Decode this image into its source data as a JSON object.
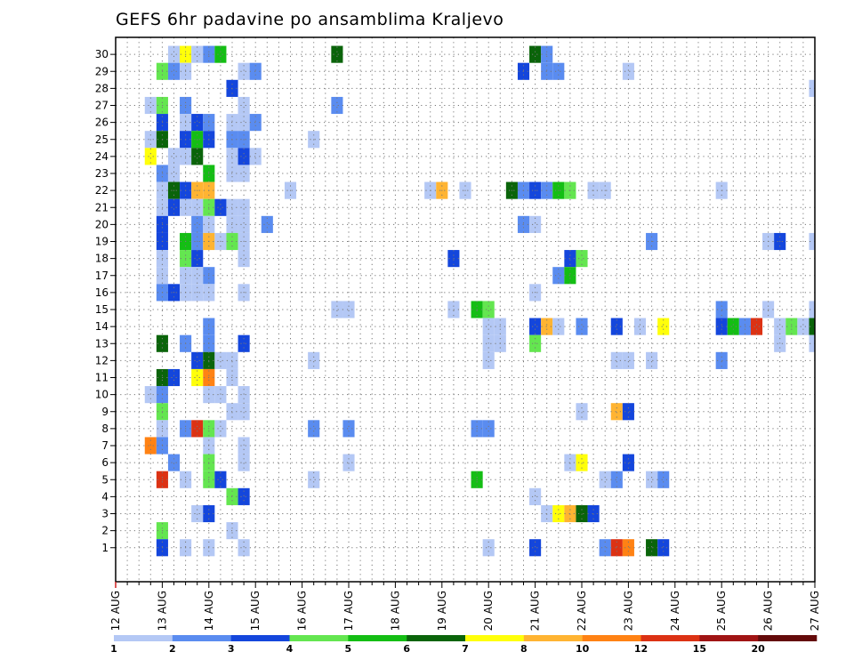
{
  "chart_data": {
    "type": "heatmap",
    "title": "GEFS 6hr padavine po ansamblima Kraljevo",
    "xlabel": "",
    "ylabel": "",
    "x_tick_labels": [
      "12 AUG",
      "13 AUG",
      "14 AUG",
      "15 AUG",
      "16 AUG",
      "17 AUG",
      "18 AUG",
      "19 AUG",
      "20 AUG",
      "21 AUG",
      "22 AUG",
      "23 AUG",
      "24 AUG",
      "25 AUG",
      "26 AUG",
      "27 AUG"
    ],
    "y_tick_labels": [
      "1",
      "2",
      "3",
      "4",
      "5",
      "6",
      "7",
      "8",
      "9",
      "10",
      "11",
      "12",
      "13",
      "14",
      "15",
      "16",
      "17",
      "18",
      "19",
      "20",
      "21",
      "22",
      "23",
      "24",
      "25",
      "26",
      "27",
      "28",
      "29",
      "30"
    ],
    "grid": true,
    "legend_position": "bottom",
    "color_scale": {
      "labels": [
        "1",
        "2",
        "3",
        "4",
        "5",
        "6",
        "7",
        "8",
        "10",
        "12",
        "15",
        "20"
      ],
      "colors": [
        "#b4c8f5",
        "#5a8cf0",
        "#1446dc",
        "#64e650",
        "#14be14",
        "#0a640a",
        "#ffff0a",
        "#ffb432",
        "#ff8214",
        "#dc3214",
        "#a01414",
        "#640a0a"
      ]
    },
    "cells": [
      {
        "d": "13 06",
        "e": 30,
        "c": 0
      },
      {
        "d": "13 12",
        "e": 30,
        "c": 6
      },
      {
        "d": "13 18",
        "e": 30,
        "c": 0
      },
      {
        "d": "14 00",
        "e": 30,
        "c": 1
      },
      {
        "d": "14 06",
        "e": 30,
        "c": 4
      },
      {
        "d": "16 18",
        "e": 30,
        "c": 5
      },
      {
        "d": "21 00",
        "e": 30,
        "c": 5
      },
      {
        "d": "21 06",
        "e": 30,
        "c": 1
      },
      {
        "d": "13 00",
        "e": 29,
        "c": 3
      },
      {
        "d": "13 06",
        "e": 29,
        "c": 1
      },
      {
        "d": "13 12",
        "e": 29,
        "c": 0
      },
      {
        "d": "14 18",
        "e": 29,
        "c": 0
      },
      {
        "d": "15 00",
        "e": 29,
        "c": 1
      },
      {
        "d": "20 18",
        "e": 29,
        "c": 2
      },
      {
        "d": "21 06",
        "e": 29,
        "c": 1
      },
      {
        "d": "21 12",
        "e": 29,
        "c": 1
      },
      {
        "d": "23 00",
        "e": 29,
        "c": 0
      },
      {
        "d": "14 12",
        "e": 28,
        "c": 2
      },
      {
        "d": "27 00",
        "e": 28,
        "c": 0
      },
      {
        "d": "12 18",
        "e": 27,
        "c": 0
      },
      {
        "d": "13 00",
        "e": 27,
        "c": 3
      },
      {
        "d": "13 12",
        "e": 27,
        "c": 1
      },
      {
        "d": "14 18",
        "e": 27,
        "c": 0
      },
      {
        "d": "16 18",
        "e": 27,
        "c": 1
      },
      {
        "d": "13 00",
        "e": 26,
        "c": 2
      },
      {
        "d": "13 12",
        "e": 26,
        "c": 0
      },
      {
        "d": "13 18",
        "e": 26,
        "c": 2
      },
      {
        "d": "14 00",
        "e": 26,
        "c": 1
      },
      {
        "d": "14 12",
        "e": 26,
        "c": 0
      },
      {
        "d": "14 18",
        "e": 26,
        "c": 0
      },
      {
        "d": "15 00",
        "e": 26,
        "c": 1
      },
      {
        "d": "12 18",
        "e": 25,
        "c": 0
      },
      {
        "d": "13 00",
        "e": 25,
        "c": 5
      },
      {
        "d": "13 12",
        "e": 25,
        "c": 2
      },
      {
        "d": "13 18",
        "e": 25,
        "c": 4
      },
      {
        "d": "14 00",
        "e": 25,
        "c": 2
      },
      {
        "d": "14 12",
        "e": 25,
        "c": 1
      },
      {
        "d": "14 18",
        "e": 25,
        "c": 1
      },
      {
        "d": "16 06",
        "e": 25,
        "c": 0
      },
      {
        "d": "12 18",
        "e": 24,
        "c": 6
      },
      {
        "d": "13 06",
        "e": 24,
        "c": 0
      },
      {
        "d": "13 12",
        "e": 24,
        "c": 0
      },
      {
        "d": "13 18",
        "e": 24,
        "c": 5
      },
      {
        "d": "14 12",
        "e": 24,
        "c": 0
      },
      {
        "d": "14 18",
        "e": 24,
        "c": 2
      },
      {
        "d": "15 00",
        "e": 24,
        "c": 0
      },
      {
        "d": "13 00",
        "e": 23,
        "c": 1
      },
      {
        "d": "13 06",
        "e": 23,
        "c": 0
      },
      {
        "d": "14 00",
        "e": 23,
        "c": 4
      },
      {
        "d": "14 12",
        "e": 23,
        "c": 0
      },
      {
        "d": "14 18",
        "e": 23,
        "c": 0
      },
      {
        "d": "13 00",
        "e": 22,
        "c": 0
      },
      {
        "d": "13 06",
        "e": 22,
        "c": 5
      },
      {
        "d": "13 12",
        "e": 22,
        "c": 2
      },
      {
        "d": "13 18",
        "e": 22,
        "c": 7
      },
      {
        "d": "14 00",
        "e": 22,
        "c": 7
      },
      {
        "d": "15 18",
        "e": 22,
        "c": 0
      },
      {
        "d": "18 18",
        "e": 22,
        "c": 0
      },
      {
        "d": "19 00",
        "e": 22,
        "c": 7
      },
      {
        "d": "19 12",
        "e": 22,
        "c": 0
      },
      {
        "d": "20 12",
        "e": 22,
        "c": 5
      },
      {
        "d": "20 18",
        "e": 22,
        "c": 1
      },
      {
        "d": "21 00",
        "e": 22,
        "c": 2
      },
      {
        "d": "21 06",
        "e": 22,
        "c": 1
      },
      {
        "d": "21 12",
        "e": 22,
        "c": 4
      },
      {
        "d": "21 18",
        "e": 22,
        "c": 3
      },
      {
        "d": "22 06",
        "e": 22,
        "c": 0
      },
      {
        "d": "22 12",
        "e": 22,
        "c": 0
      },
      {
        "d": "25 00",
        "e": 22,
        "c": 0
      },
      {
        "d": "13 00",
        "e": 21,
        "c": 0
      },
      {
        "d": "13 06",
        "e": 21,
        "c": 2
      },
      {
        "d": "13 12",
        "e": 21,
        "c": 0
      },
      {
        "d": "13 18",
        "e": 21,
        "c": 0
      },
      {
        "d": "14 00",
        "e": 21,
        "c": 3
      },
      {
        "d": "14 06",
        "e": 21,
        "c": 2
      },
      {
        "d": "14 12",
        "e": 21,
        "c": 0
      },
      {
        "d": "14 18",
        "e": 21,
        "c": 0
      },
      {
        "d": "13 00",
        "e": 20,
        "c": 2
      },
      {
        "d": "13 18",
        "e": 20,
        "c": 1
      },
      {
        "d": "14 00",
        "e": 20,
        "c": 0
      },
      {
        "d": "14 12",
        "e": 20,
        "c": 0
      },
      {
        "d": "14 18",
        "e": 20,
        "c": 0
      },
      {
        "d": "15 06",
        "e": 20,
        "c": 1
      },
      {
        "d": "20 18",
        "e": 20,
        "c": 1
      },
      {
        "d": "21 00",
        "e": 20,
        "c": 0
      },
      {
        "d": "13 00",
        "e": 19,
        "c": 2
      },
      {
        "d": "13 12",
        "e": 19,
        "c": 4
      },
      {
        "d": "13 18",
        "e": 19,
        "c": 1
      },
      {
        "d": "14 00",
        "e": 19,
        "c": 7
      },
      {
        "d": "14 06",
        "e": 19,
        "c": 0
      },
      {
        "d": "14 12",
        "e": 19,
        "c": 3
      },
      {
        "d": "14 18",
        "e": 19,
        "c": 0
      },
      {
        "d": "23 12",
        "e": 19,
        "c": 1
      },
      {
        "d": "26 00",
        "e": 19,
        "c": 0
      },
      {
        "d": "26 06",
        "e": 19,
        "c": 2
      },
      {
        "d": "27 00",
        "e": 19,
        "c": 0
      },
      {
        "d": "13 00",
        "e": 18,
        "c": 0
      },
      {
        "d": "13 12",
        "e": 18,
        "c": 3
      },
      {
        "d": "13 18",
        "e": 18,
        "c": 2
      },
      {
        "d": "14 18",
        "e": 18,
        "c": 0
      },
      {
        "d": "19 06",
        "e": 18,
        "c": 2
      },
      {
        "d": "21 18",
        "e": 18,
        "c": 2
      },
      {
        "d": "22 00",
        "e": 18,
        "c": 3
      },
      {
        "d": "13 00",
        "e": 17,
        "c": 0
      },
      {
        "d": "13 12",
        "e": 17,
        "c": 0
      },
      {
        "d": "13 18",
        "e": 17,
        "c": 0
      },
      {
        "d": "14 00",
        "e": 17,
        "c": 1
      },
      {
        "d": "21 12",
        "e": 17,
        "c": 1
      },
      {
        "d": "21 18",
        "e": 17,
        "c": 4
      },
      {
        "d": "13 00",
        "e": 16,
        "c": 1
      },
      {
        "d": "13 06",
        "e": 16,
        "c": 2
      },
      {
        "d": "13 12",
        "e": 16,
        "c": 0
      },
      {
        "d": "13 18",
        "e": 16,
        "c": 0
      },
      {
        "d": "14 00",
        "e": 16,
        "c": 0
      },
      {
        "d": "14 18",
        "e": 16,
        "c": 0
      },
      {
        "d": "21 00",
        "e": 16,
        "c": 0
      },
      {
        "d": "16 18",
        "e": 15,
        "c": 0
      },
      {
        "d": "17 00",
        "e": 15,
        "c": 0
      },
      {
        "d": "19 06",
        "e": 15,
        "c": 0
      },
      {
        "d": "19 18",
        "e": 15,
        "c": 4
      },
      {
        "d": "20 00",
        "e": 15,
        "c": 3
      },
      {
        "d": "25 00",
        "e": 15,
        "c": 1
      },
      {
        "d": "26 00",
        "e": 15,
        "c": 0
      },
      {
        "d": "27 00",
        "e": 15,
        "c": 0
      },
      {
        "d": "14 00",
        "e": 14,
        "c": 1
      },
      {
        "d": "20 00",
        "e": 14,
        "c": 0
      },
      {
        "d": "20 06",
        "e": 14,
        "c": 0
      },
      {
        "d": "21 00",
        "e": 14,
        "c": 2
      },
      {
        "d": "21 06",
        "e": 14,
        "c": 7
      },
      {
        "d": "21 12",
        "e": 14,
        "c": 0
      },
      {
        "d": "22 00",
        "e": 14,
        "c": 1
      },
      {
        "d": "22 18",
        "e": 14,
        "c": 2
      },
      {
        "d": "23 06",
        "e": 14,
        "c": 0
      },
      {
        "d": "23 18",
        "e": 14,
        "c": 6
      },
      {
        "d": "25 00",
        "e": 14,
        "c": 2
      },
      {
        "d": "25 06",
        "e": 14,
        "c": 4
      },
      {
        "d": "25 12",
        "e": 14,
        "c": 1
      },
      {
        "d": "25 18",
        "e": 14,
        "c": 9
      },
      {
        "d": "26 06",
        "e": 14,
        "c": 0
      },
      {
        "d": "26 12",
        "e": 14,
        "c": 3
      },
      {
        "d": "26 18",
        "e": 14,
        "c": 0
      },
      {
        "d": "27 00",
        "e": 14,
        "c": 5
      },
      {
        "d": "13 00",
        "e": 13,
        "c": 5
      },
      {
        "d": "13 12",
        "e": 13,
        "c": 1
      },
      {
        "d": "14 00",
        "e": 13,
        "c": 1
      },
      {
        "d": "14 18",
        "e": 13,
        "c": 2
      },
      {
        "d": "20 00",
        "e": 13,
        "c": 0
      },
      {
        "d": "20 06",
        "e": 13,
        "c": 0
      },
      {
        "d": "21 00",
        "e": 13,
        "c": 3
      },
      {
        "d": "26 06",
        "e": 13,
        "c": 0
      },
      {
        "d": "27 00",
        "e": 13,
        "c": 0
      },
      {
        "d": "13 18",
        "e": 12,
        "c": 2
      },
      {
        "d": "14 00",
        "e": 12,
        "c": 5
      },
      {
        "d": "14 06",
        "e": 12,
        "c": 0
      },
      {
        "d": "14 12",
        "e": 12,
        "c": 0
      },
      {
        "d": "16 06",
        "e": 12,
        "c": 0
      },
      {
        "d": "20 00",
        "e": 12,
        "c": 0
      },
      {
        "d": "22 18",
        "e": 12,
        "c": 0
      },
      {
        "d": "23 00",
        "e": 12,
        "c": 0
      },
      {
        "d": "23 12",
        "e": 12,
        "c": 0
      },
      {
        "d": "25 00",
        "e": 12,
        "c": 1
      },
      {
        "d": "13 00",
        "e": 11,
        "c": 5
      },
      {
        "d": "13 06",
        "e": 11,
        "c": 2
      },
      {
        "d": "13 18",
        "e": 11,
        "c": 6
      },
      {
        "d": "14 00",
        "e": 11,
        "c": 8
      },
      {
        "d": "14 12",
        "e": 11,
        "c": 0
      },
      {
        "d": "12 18",
        "e": 10,
        "c": 0
      },
      {
        "d": "13 00",
        "e": 10,
        "c": 1
      },
      {
        "d": "14 00",
        "e": 10,
        "c": 0
      },
      {
        "d": "14 06",
        "e": 10,
        "c": 0
      },
      {
        "d": "14 18",
        "e": 10,
        "c": 0
      },
      {
        "d": "13 00",
        "e": 9,
        "c": 3
      },
      {
        "d": "14 12",
        "e": 9,
        "c": 0
      },
      {
        "d": "14 18",
        "e": 9,
        "c": 0
      },
      {
        "d": "22 00",
        "e": 9,
        "c": 0
      },
      {
        "d": "22 18",
        "e": 9,
        "c": 7
      },
      {
        "d": "23 00",
        "e": 9,
        "c": 2
      },
      {
        "d": "13 00",
        "e": 8,
        "c": 0
      },
      {
        "d": "13 12",
        "e": 8,
        "c": 1
      },
      {
        "d": "13 18",
        "e": 8,
        "c": 9
      },
      {
        "d": "14 00",
        "e": 8,
        "c": 3
      },
      {
        "d": "14 06",
        "e": 8,
        "c": 0
      },
      {
        "d": "16 06",
        "e": 8,
        "c": 1
      },
      {
        "d": "17 00",
        "e": 8,
        "c": 1
      },
      {
        "d": "19 18",
        "e": 8,
        "c": 1
      },
      {
        "d": "20 00",
        "e": 8,
        "c": 1
      },
      {
        "d": "12 18",
        "e": 7,
        "c": 8
      },
      {
        "d": "13 00",
        "e": 7,
        "c": 1
      },
      {
        "d": "14 00",
        "e": 7,
        "c": 0
      },
      {
        "d": "14 18",
        "e": 7,
        "c": 0
      },
      {
        "d": "13 06",
        "e": 6,
        "c": 1
      },
      {
        "d": "14 00",
        "e": 6,
        "c": 3
      },
      {
        "d": "14 18",
        "e": 6,
        "c": 0
      },
      {
        "d": "17 00",
        "e": 6,
        "c": 0
      },
      {
        "d": "21 18",
        "e": 6,
        "c": 0
      },
      {
        "d": "22 00",
        "e": 6,
        "c": 6
      },
      {
        "d": "23 00",
        "e": 6,
        "c": 2
      },
      {
        "d": "13 00",
        "e": 5,
        "c": 9
      },
      {
        "d": "13 12",
        "e": 5,
        "c": 0
      },
      {
        "d": "14 00",
        "e": 5,
        "c": 3
      },
      {
        "d": "14 06",
        "e": 5,
        "c": 2
      },
      {
        "d": "16 06",
        "e": 5,
        "c": 0
      },
      {
        "d": "19 18",
        "e": 5,
        "c": 4
      },
      {
        "d": "22 12",
        "e": 5,
        "c": 0
      },
      {
        "d": "22 18",
        "e": 5,
        "c": 1
      },
      {
        "d": "23 18",
        "e": 5,
        "c": 1
      },
      {
        "d": "23 12",
        "e": 5,
        "c": 0
      },
      {
        "d": "14 12",
        "e": 4,
        "c": 3
      },
      {
        "d": "14 18",
        "e": 4,
        "c": 2
      },
      {
        "d": "21 00",
        "e": 4,
        "c": 0
      },
      {
        "d": "13 18",
        "e": 3,
        "c": 0
      },
      {
        "d": "14 00",
        "e": 3,
        "c": 2
      },
      {
        "d": "21 06",
        "e": 3,
        "c": 0
      },
      {
        "d": "21 12",
        "e": 3,
        "c": 6
      },
      {
        "d": "21 18",
        "e": 3,
        "c": 7
      },
      {
        "d": "22 00",
        "e": 3,
        "c": 5
      },
      {
        "d": "22 06",
        "e": 3,
        "c": 2
      },
      {
        "d": "13 00",
        "e": 2,
        "c": 3
      },
      {
        "d": "14 12",
        "e": 2,
        "c": 0
      },
      {
        "d": "13 00",
        "e": 1,
        "c": 2
      },
      {
        "d": "13 12",
        "e": 1,
        "c": 0
      },
      {
        "d": "14 00",
        "e": 1,
        "c": 0
      },
      {
        "d": "14 18",
        "e": 1,
        "c": 0
      },
      {
        "d": "20 00",
        "e": 1,
        "c": 0
      },
      {
        "d": "21 00",
        "e": 1,
        "c": 2
      },
      {
        "d": "22 12",
        "e": 1,
        "c": 1
      },
      {
        "d": "22 18",
        "e": 1,
        "c": 9
      },
      {
        "d": "23 00",
        "e": 1,
        "c": 8
      },
      {
        "d": "23 12",
        "e": 1,
        "c": 5
      },
      {
        "d": "23 18",
        "e": 1,
        "c": 2
      }
    ]
  }
}
